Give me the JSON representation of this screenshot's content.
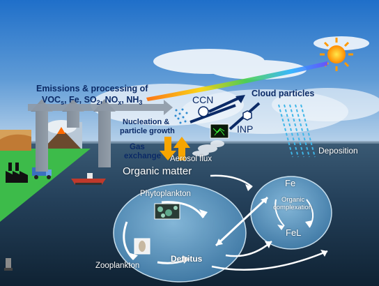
{
  "labels": {
    "emissions_line1": "Emissions & processing of",
    "emissions_line2": {
      "voc": "VOC",
      "voc_sub": "s",
      "fe": ", Fe, SO",
      "so2_sub": "2",
      "nox": ", NO",
      "nox_sub": "x",
      "nh": ", NH",
      "nh3_sub": "3"
    },
    "nucleation": "Nucleation &",
    "particle_growth": "particle growth",
    "ccn": "CCN",
    "cloud_particles": "Cloud particles",
    "inp": "INP",
    "gas_exchange_1": "Gas",
    "gas_exchange_2": "exchange",
    "aerosol_flux": "Aerosol flux",
    "deposition": "Deposition",
    "organic_matter": "Organic matter",
    "phytoplankton": "Phytoplankton",
    "zooplankton": "Zooplankton",
    "detritus": "Detritus",
    "fe": "Fe",
    "organic_complexation_1": "Organic",
    "organic_complexation_2": "complexation",
    "fel": "FeL"
  },
  "colors": {
    "sky_top": "#1f6fc9",
    "sky_bottom": "#a9c8e6",
    "ocean_top": "#2d4e68",
    "ocean_bottom": "#0f2233",
    "text_dark": "#0b2a66",
    "land_green": "#39b54a",
    "arrow_orange": "#f7a500",
    "deposition": "#3fb6e8",
    "ocean_circle": "#6fb0d8"
  },
  "icons": [
    "sun-icon",
    "factory-icon",
    "truck-icon",
    "volcano-icon",
    "desert-icon",
    "ship-icon",
    "plankton-image-icon",
    "zooplankton-image-icon",
    "ice-crystal-image-icon"
  ]
}
